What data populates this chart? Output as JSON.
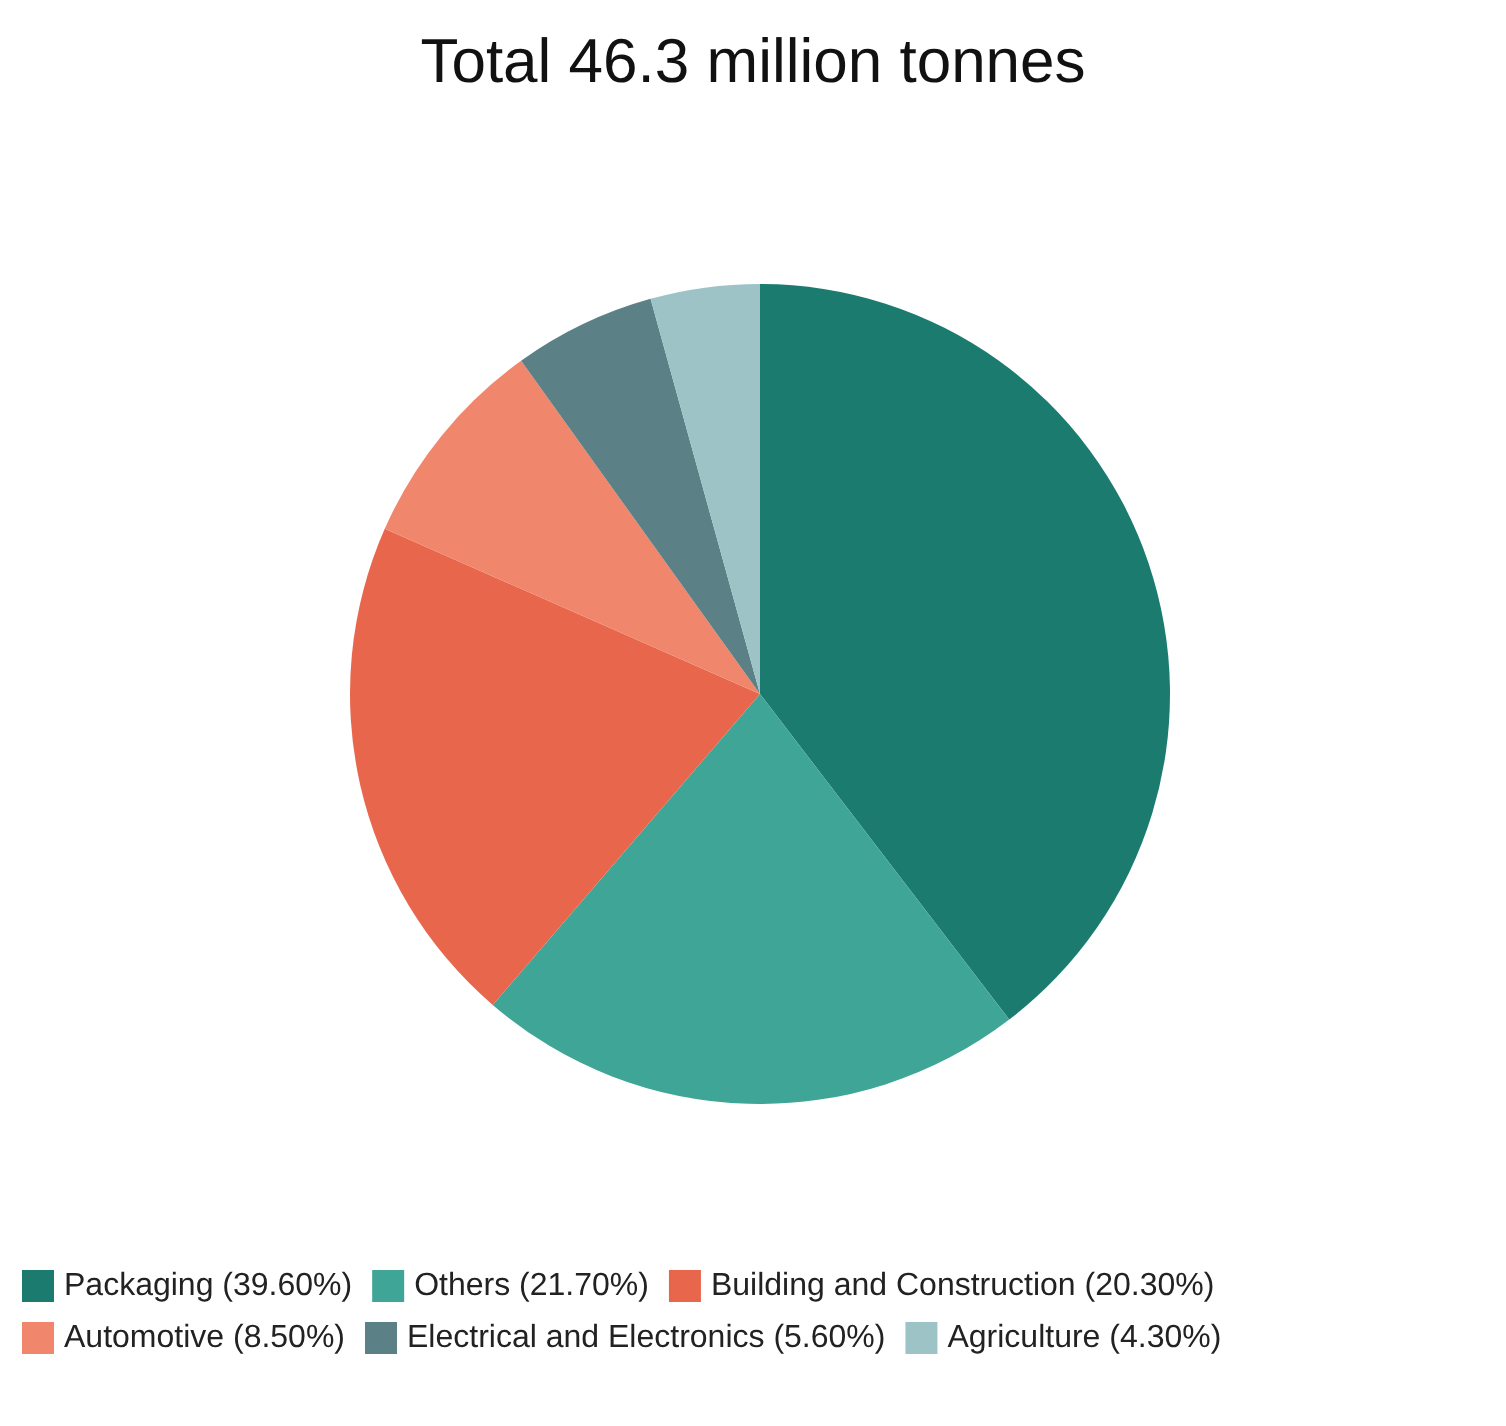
{
  "chart_data": {
    "type": "pie",
    "title": "Total 46.3 million tonnes",
    "categories": [
      "Packaging (39.60%)",
      "Others (21.70%)",
      "Building and Construction (20.30%)",
      "Automotive (8.50%)",
      "Electrical and Electronics (5.60%)",
      "Agriculture (4.30%)"
    ],
    "values": [
      39.6,
      21.7,
      20.3,
      8.5,
      5.6,
      4.3
    ],
    "colors": [
      "#1b7b6f",
      "#3ea597",
      "#e8664b",
      "#f0866b",
      "#5b8085",
      "#9dc3c7"
    ],
    "legend": "bottom"
  }
}
